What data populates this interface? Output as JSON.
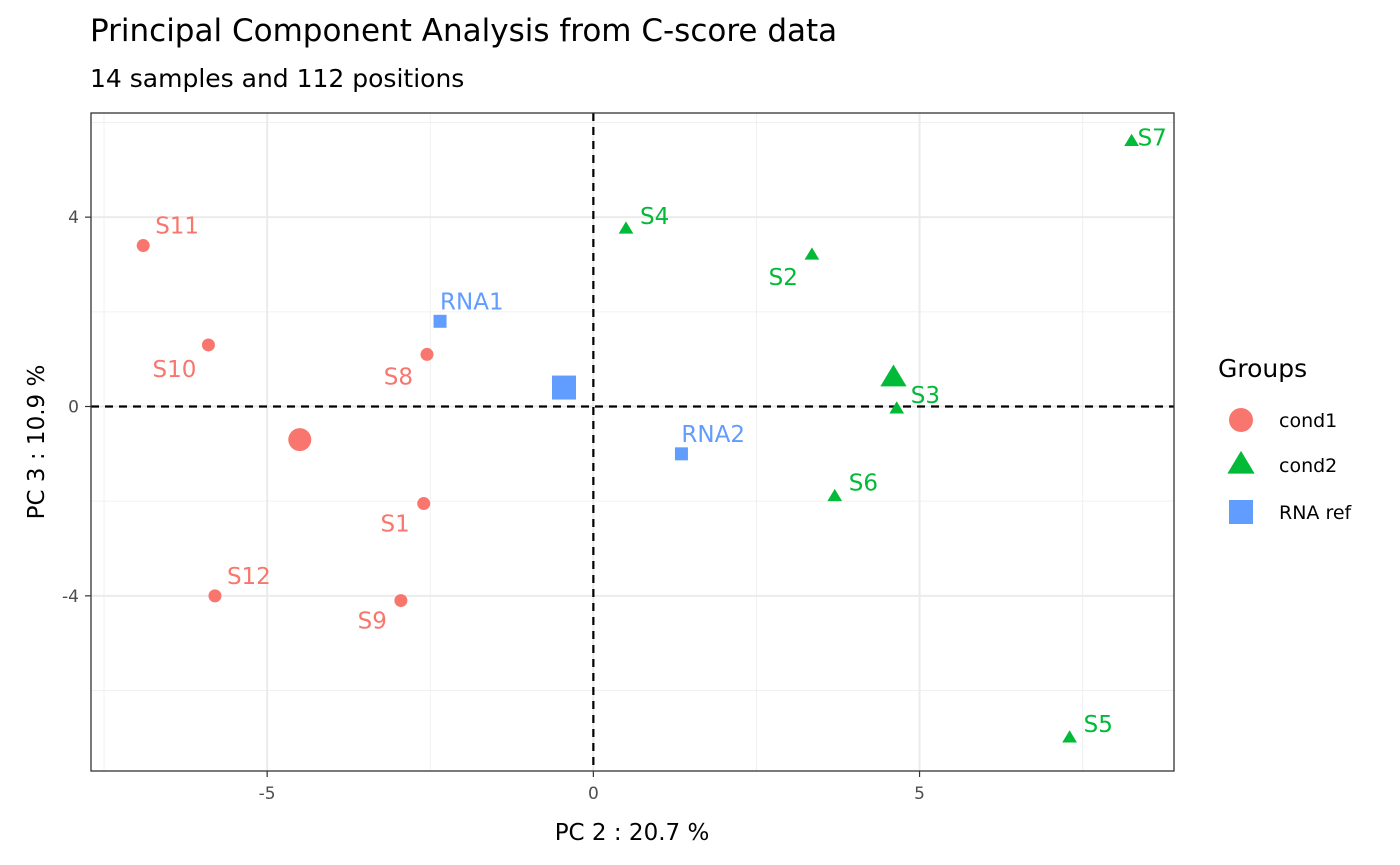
{
  "chart_data": {
    "type": "scatter",
    "title": "Principal Component Analysis from C-score data",
    "subtitle": "14 samples and 112 positions",
    "xlabel": "PC 2 : 20.7 %",
    "ylabel": "PC 3 : 10.9 %",
    "xlim": [
      -7.7,
      8.9
    ],
    "ylim": [
      -7.7,
      6.2
    ],
    "x_ticks": [
      -5,
      0,
      5
    ],
    "x_tick_labels": [
      "-5",
      "0",
      "5"
    ],
    "y_ticks": [
      -4,
      0,
      4
    ],
    "y_tick_labels": [
      "-4",
      "0",
      "4"
    ],
    "grid": true,
    "reference_lines": {
      "x": 0,
      "y": 0,
      "style": "dashed"
    },
    "legend": {
      "title": "Groups",
      "position": "right"
    },
    "series": [
      {
        "name": "cond1",
        "color": "#F8766D",
        "shape": "circle",
        "points": [
          {
            "label": "S11",
            "x": -6.9,
            "y": 3.4
          },
          {
            "label": "S10",
            "x": -5.9,
            "y": 1.3
          },
          {
            "label": "S8",
            "x": -2.55,
            "y": 1.1
          },
          {
            "label": "S1",
            "x": -2.6,
            "y": -2.05
          },
          {
            "label": "S12",
            "x": -5.8,
            "y": -4.0
          },
          {
            "label": "S9",
            "x": -2.95,
            "y": -4.1
          }
        ],
        "centroid": {
          "x": -4.5,
          "y": -0.7
        }
      },
      {
        "name": "cond2",
        "color": "#00BA38",
        "shape": "triangle",
        "points": [
          {
            "label": "S7",
            "x": 8.25,
            "y": 5.6
          },
          {
            "label": "S4",
            "x": 0.5,
            "y": 3.75
          },
          {
            "label": "S2",
            "x": 3.35,
            "y": 3.2
          },
          {
            "label": "S3",
            "x": 4.65,
            "y": -0.05
          },
          {
            "label": "S6",
            "x": 3.7,
            "y": -1.9
          },
          {
            "label": "S5",
            "x": 7.3,
            "y": -7.0
          }
        ],
        "centroid": {
          "x": 4.6,
          "y": 0.6
        }
      },
      {
        "name": "RNA ref",
        "color": "#619CFF",
        "shape": "square",
        "points": [
          {
            "label": "RNA1",
            "x": -2.35,
            "y": 1.8
          },
          {
            "label": "RNA2",
            "x": 1.35,
            "y": -1.0
          }
        ],
        "centroid": {
          "x": -0.45,
          "y": 0.4
        }
      }
    ]
  }
}
